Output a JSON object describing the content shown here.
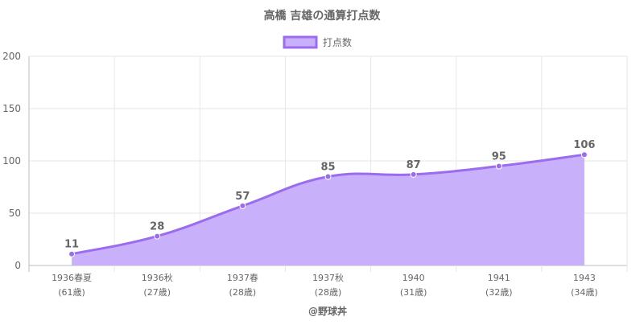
{
  "chart_data": {
    "type": "area",
    "title": "高橋 吉雄の通算打点数",
    "categories": [
      [
        "1936春夏",
        "(61歳)"
      ],
      [
        "1936秋",
        "(27歳)"
      ],
      [
        "1937春",
        "(28歳)"
      ],
      [
        "1937秋",
        "(28歳)"
      ],
      [
        "1940",
        "(31歳)"
      ],
      [
        "1941",
        "(32歳)"
      ],
      [
        "1943",
        "(34歳)"
      ]
    ],
    "series": [
      {
        "name": "打点数",
        "values": [
          11,
          28,
          57,
          85,
          87,
          95,
          106
        ]
      }
    ],
    "ylim": [
      0,
      200
    ],
    "yticks": [
      0,
      50,
      100,
      150,
      200
    ],
    "legend": "top",
    "grid": true,
    "colors": {
      "line": "#9b6cf0",
      "fill": "#c9b0fb",
      "point": "#9b6cf0"
    },
    "watermark": "@野球丼"
  }
}
